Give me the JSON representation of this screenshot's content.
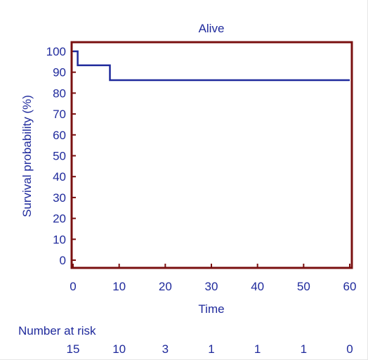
{
  "chart_data": {
    "type": "line",
    "title": "Alive",
    "xlabel": "Time",
    "ylabel": "Survival probability (%)",
    "xlim": [
      0,
      60
    ],
    "ylim": [
      0,
      100
    ],
    "x_ticks": [
      0,
      10,
      20,
      30,
      40,
      50,
      60
    ],
    "y_ticks": [
      0,
      10,
      20,
      30,
      40,
      50,
      60,
      70,
      80,
      90,
      100
    ],
    "grid": false,
    "series": [
      {
        "step": true,
        "x": [
          0,
          1,
          1,
          8,
          8,
          60
        ],
        "y": [
          100,
          100,
          93.3,
          93.3,
          86.2,
          86.2
        ]
      }
    ],
    "number_at_risk": {
      "label": "Number at risk",
      "values": [
        15,
        10,
        3,
        1,
        1,
        1,
        0
      ]
    },
    "colors": {
      "axes": "#7a1010",
      "line": "#1f2a9c",
      "text": "#1f2a9c"
    }
  }
}
